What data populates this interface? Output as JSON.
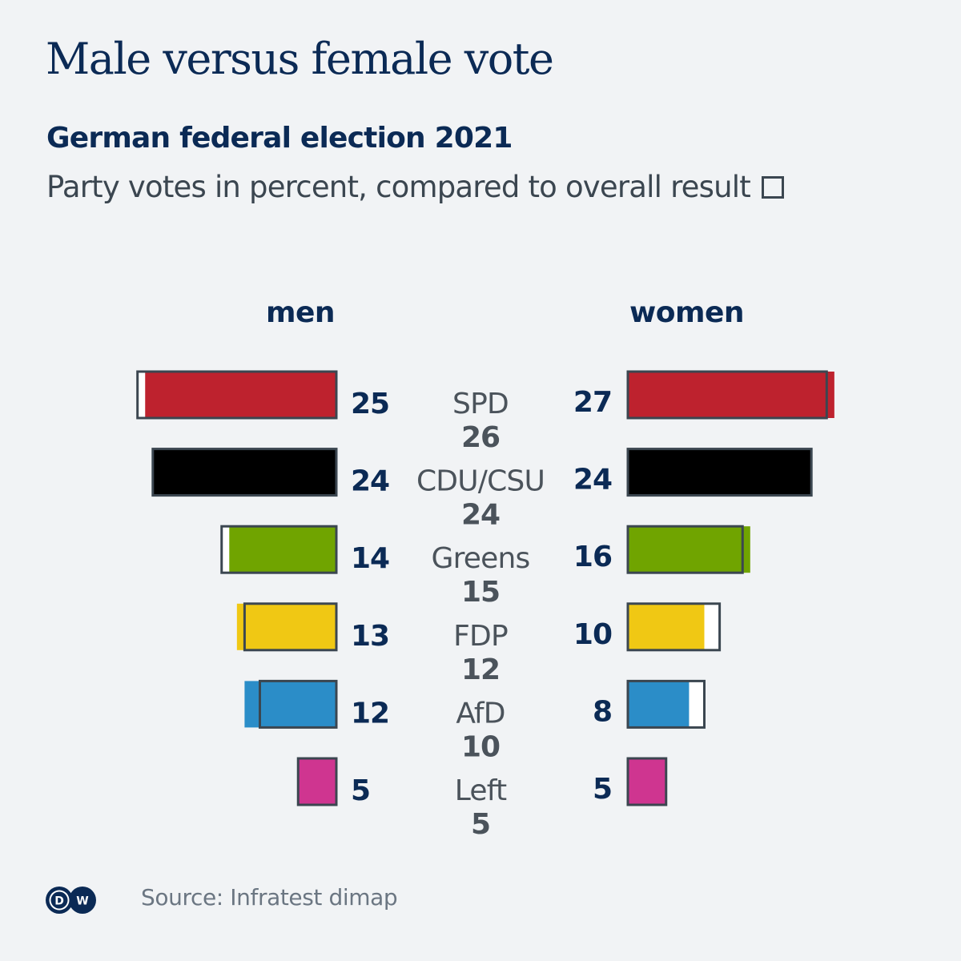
{
  "header": {
    "title": "Male versus female vote",
    "subtitle": "German federal election 2021",
    "description": "Party votes in percent, compared to overall result"
  },
  "legend": {
    "overall_marker": "outline-box"
  },
  "groups": {
    "left": "men",
    "right": "women"
  },
  "footer": {
    "logo_text": "DW",
    "source": "Source: Infratest dimap"
  },
  "chart_data": {
    "type": "bar",
    "orientation": "horizontal-butterfly",
    "title": "Male versus female vote",
    "subtitle": "German federal election 2021",
    "description": "Party votes in percent, compared to overall result",
    "unit": "percent",
    "categories": [
      "SPD",
      "CDU/CSU",
      "Greens",
      "FDP",
      "AfD",
      "Left"
    ],
    "colors": [
      "#be222e",
      "#000000",
      "#70a400",
      "#f0c814",
      "#2b8dc8",
      "#cf3590"
    ],
    "series": [
      {
        "name": "men",
        "values": [
          25,
          24,
          14,
          13,
          12,
          5
        ]
      },
      {
        "name": "women",
        "values": [
          27,
          24,
          16,
          10,
          8,
          5
        ]
      },
      {
        "name": "overall",
        "values": [
          26,
          24,
          15,
          12,
          10,
          5
        ]
      }
    ],
    "overall_style": "outline",
    "xlim": [
      0,
      30
    ],
    "grid": false,
    "legend": "inline-subtitle"
  }
}
